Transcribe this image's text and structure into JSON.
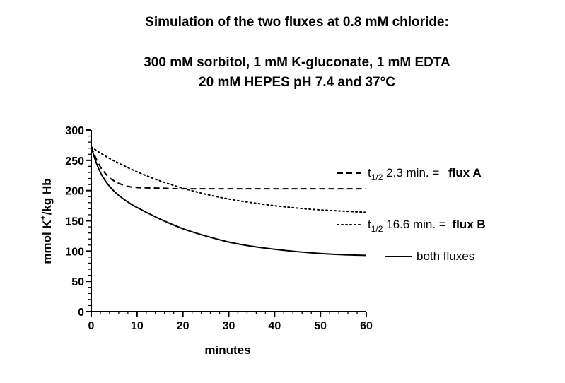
{
  "chart_data": {
    "type": "line",
    "title_lines": [
      "Simulation of the two fluxes at 0.8 mM chloride:",
      "300 mM sorbitol, 1 mM K-gluconate, 1 mM EDTA",
      "20 mM HEPES pH 7.4 and 37°C"
    ],
    "xlabel": "minutes",
    "ylabel": {
      "part1": "mmol K",
      "sup": "+",
      "part2": "/kg Hb"
    },
    "xlim": [
      0,
      60
    ],
    "ylim": [
      0,
      300
    ],
    "x_ticks": [
      0,
      10,
      20,
      30,
      40,
      50,
      60
    ],
    "y_ticks": [
      0,
      50,
      100,
      150,
      200,
      250,
      300
    ],
    "grid": false,
    "legend_position": "right",
    "series": [
      {
        "key": "flux_a",
        "style": "dashed",
        "legend": {
          "t": "t",
          "sub": "1/2",
          "text": " 2.3 min. = ",
          "strong": "flux A"
        },
        "x": [
          0,
          1,
          2,
          3,
          4,
          5,
          6,
          8,
          10,
          15,
          20,
          30,
          40,
          50,
          60
        ],
        "y": [
          272,
          254,
          239,
          229,
          221,
          216,
          212,
          207,
          205,
          204,
          203,
          203,
          203,
          203,
          203
        ]
      },
      {
        "key": "flux_b",
        "style": "dotted",
        "legend": {
          "t": "t",
          "sub": "1/2",
          "text": " 16.6 min. = ",
          "strong": "flux B"
        },
        "x": [
          0,
          2,
          5,
          10,
          15,
          20,
          25,
          30,
          35,
          40,
          45,
          50,
          55,
          60
        ],
        "y": [
          272,
          262,
          249,
          231,
          216,
          204,
          194,
          186,
          180,
          175,
          171,
          168,
          166,
          164
        ]
      },
      {
        "key": "both",
        "style": "solid",
        "legend": {
          "text": "both fluxes"
        },
        "x": [
          0,
          1,
          2,
          3,
          4,
          5,
          6,
          8,
          10,
          15,
          20,
          25,
          30,
          35,
          40,
          45,
          50,
          55,
          60
        ],
        "y": [
          272,
          248,
          230,
          217,
          207,
          199,
          192,
          181,
          172,
          153,
          137,
          125,
          115,
          108,
          103,
          99,
          96,
          94,
          93
        ]
      }
    ]
  }
}
